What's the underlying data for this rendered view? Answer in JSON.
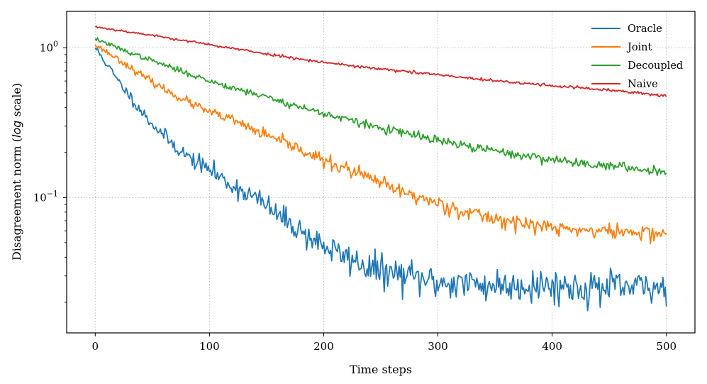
{
  "chart_data": {
    "type": "line",
    "title": "",
    "xlabel": "Time steps",
    "ylabel_parts": [
      "Disagreement norm (",
      "log",
      " scale)"
    ],
    "yscale": "log",
    "xlim": [
      -25,
      525
    ],
    "ylim": [
      0.0125,
      1.75
    ],
    "xticks": [
      0,
      100,
      200,
      300,
      400,
      500
    ],
    "yticks": [
      {
        "value": 1,
        "base": "10",
        "exp": "0"
      },
      {
        "value": 0.1,
        "base": "10",
        "exp": "−1"
      }
    ],
    "grid": true,
    "legend_position": "top-right",
    "series": [
      {
        "name": "Oracle",
        "color": "#1f77b4",
        "seed": 11,
        "noise": 0.13,
        "noise_start": 0.03,
        "x": [
          0,
          10,
          20,
          30,
          40,
          50,
          60,
          70,
          80,
          90,
          100,
          110,
          120,
          130,
          140,
          150,
          160,
          170,
          180,
          190,
          200,
          210,
          220,
          230,
          240,
          250,
          260,
          270,
          280,
          290,
          300,
          320,
          340,
          360,
          380,
          400,
          420,
          440,
          460,
          480,
          500
        ],
        "y": [
          1.0,
          0.78,
          0.6,
          0.48,
          0.38,
          0.31,
          0.26,
          0.22,
          0.19,
          0.17,
          0.155,
          0.135,
          0.12,
          0.11,
          0.1,
          0.088,
          0.076,
          0.068,
          0.06,
          0.053,
          0.048,
          0.043,
          0.04,
          0.037,
          0.034,
          0.032,
          0.031,
          0.03,
          0.029,
          0.028,
          0.027,
          0.027,
          0.026,
          0.026,
          0.026,
          0.026,
          0.025,
          0.025,
          0.025,
          0.025,
          0.025
        ]
      },
      {
        "name": "Joint",
        "color": "#ff7f0e",
        "seed": 23,
        "noise": 0.06,
        "noise_start": 0.02,
        "x": [
          0,
          20,
          40,
          60,
          80,
          100,
          120,
          140,
          160,
          180,
          200,
          220,
          240,
          260,
          280,
          300,
          320,
          340,
          360,
          380,
          400,
          420,
          440,
          460,
          480,
          500
        ],
        "y": [
          1.05,
          0.84,
          0.66,
          0.53,
          0.44,
          0.37,
          0.33,
          0.28,
          0.24,
          0.21,
          0.175,
          0.155,
          0.135,
          0.115,
          0.102,
          0.092,
          0.082,
          0.075,
          0.07,
          0.066,
          0.063,
          0.061,
          0.06,
          0.059,
          0.058,
          0.058
        ]
      },
      {
        "name": "Decoupled",
        "color": "#2ca02c",
        "seed": 37,
        "noise": 0.035,
        "noise_start": 0.015,
        "x": [
          0,
          25,
          50,
          75,
          100,
          125,
          150,
          175,
          200,
          225,
          250,
          275,
          300,
          325,
          350,
          375,
          400,
          425,
          450,
          475,
          500
        ],
        "y": [
          1.15,
          0.96,
          0.82,
          0.7,
          0.6,
          0.53,
          0.47,
          0.41,
          0.365,
          0.325,
          0.29,
          0.265,
          0.24,
          0.22,
          0.205,
          0.19,
          0.18,
          0.17,
          0.163,
          0.155,
          0.15
        ]
      },
      {
        "name": "Naive",
        "color": "#d62728",
        "seed": 53,
        "noise": 0.012,
        "noise_start": 0.008,
        "x": [
          0,
          50,
          100,
          150,
          200,
          250,
          300,
          350,
          400,
          450,
          500
        ],
        "y": [
          1.38,
          1.21,
          1.05,
          0.91,
          0.8,
          0.72,
          0.66,
          0.6,
          0.56,
          0.52,
          0.48
        ]
      }
    ]
  }
}
